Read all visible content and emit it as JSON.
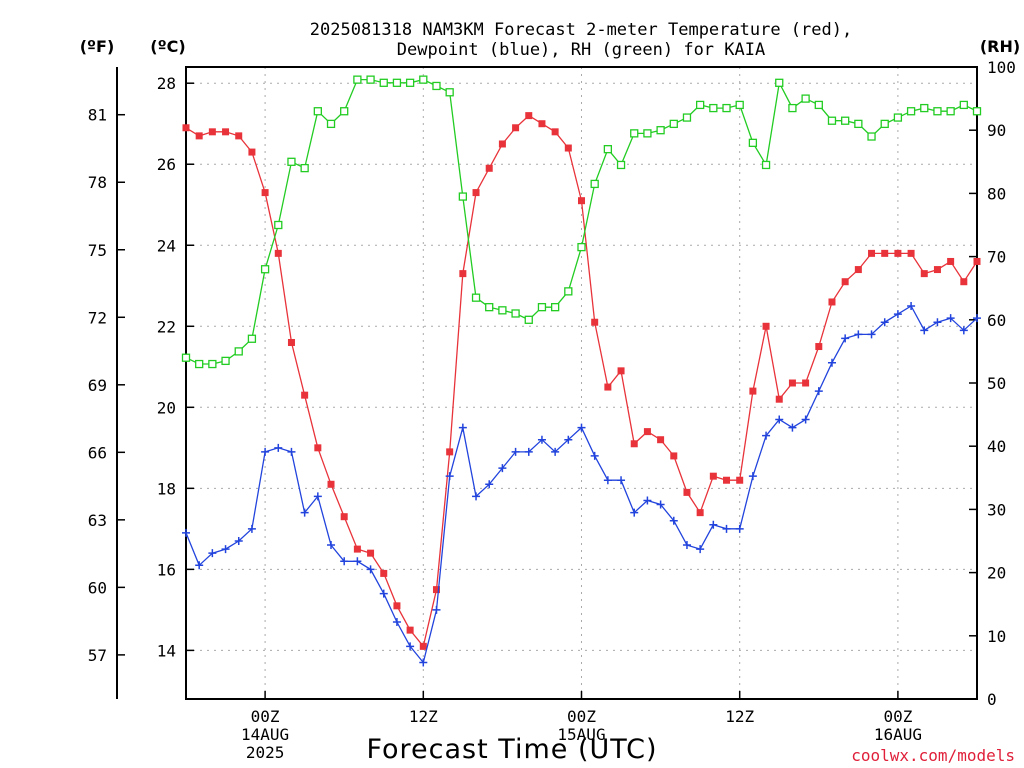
{
  "chart_data": {
    "type": "line",
    "title_line1": "2025081318 NAM3KM Forecast 2-meter Temperature (red),",
    "title_line2": "Dewpoint (blue), RH (green) for KAIA",
    "left_unit_f": "(ºF)",
    "left_unit_c": "(ºC)",
    "right_unit": "(RH)",
    "xlabel": "Forecast Time (UTC)",
    "credit": "coolwx.com/models",
    "x_ticks": [
      {
        "hour": 6,
        "lines": [
          "00Z",
          "14AUG",
          "2025"
        ]
      },
      {
        "hour": 18,
        "lines": [
          "12Z"
        ]
      },
      {
        "hour": 30,
        "lines": [
          "00Z",
          "15AUG"
        ]
      },
      {
        "hour": 42,
        "lines": [
          "12Z"
        ]
      },
      {
        "hour": 54,
        "lines": [
          "00Z",
          "16AUG"
        ]
      }
    ],
    "x_range": [
      0,
      60
    ],
    "celsius_ticks": [
      14,
      16,
      18,
      20,
      22,
      24,
      26,
      28
    ],
    "celsius_range": [
      12.8,
      28.4
    ],
    "fahrenheit_ticks": [
      57,
      60,
      63,
      66,
      69,
      72,
      75,
      78,
      81
    ],
    "rh_ticks": [
      0,
      10,
      20,
      30,
      40,
      50,
      60,
      70,
      80,
      90,
      100
    ],
    "rh_range": [
      0,
      100
    ],
    "grid": true,
    "series": [
      {
        "name": "2-meter Temperature",
        "color": "#e8333a",
        "marker": "filled-square",
        "axis": "celsius",
        "x": [
          0,
          1,
          2,
          3,
          4,
          5,
          6,
          7,
          8,
          9,
          10,
          11,
          12,
          13,
          14,
          15,
          16,
          17,
          18,
          19,
          20,
          21,
          22,
          23,
          24,
          25,
          26,
          27,
          28,
          29,
          30,
          31,
          32,
          33,
          34,
          35,
          36,
          37,
          38,
          39,
          40,
          41,
          42,
          43,
          44,
          45,
          46,
          47,
          48,
          49,
          50,
          51,
          52,
          53,
          54,
          55,
          56,
          57,
          58,
          59,
          60
        ],
        "values": [
          26.9,
          26.7,
          26.8,
          26.8,
          26.7,
          26.3,
          25.3,
          23.8,
          21.6,
          20.3,
          19.0,
          18.1,
          17.3,
          16.5,
          16.4,
          15.9,
          15.1,
          14.5,
          14.1,
          15.5,
          18.9,
          23.3,
          25.3,
          25.9,
          26.5,
          26.9,
          27.2,
          27.0,
          26.8,
          26.4,
          25.1,
          22.1,
          20.5,
          20.9,
          19.1,
          19.4,
          19.2,
          18.8,
          17.9,
          17.4,
          18.3,
          18.2,
          18.2,
          20.4,
          22.0,
          20.2,
          20.6,
          20.6,
          21.5,
          22.6,
          23.1,
          23.4,
          23.8,
          23.8,
          23.8,
          23.8,
          23.3,
          23.4,
          23.6,
          23.1,
          23.6
        ]
      },
      {
        "name": "Dewpoint",
        "color": "#2244dd",
        "marker": "plus",
        "axis": "celsius",
        "x": [
          0,
          1,
          2,
          3,
          4,
          5,
          6,
          7,
          8,
          9,
          10,
          11,
          12,
          13,
          14,
          15,
          16,
          17,
          18,
          19,
          20,
          21,
          22,
          23,
          24,
          25,
          26,
          27,
          28,
          29,
          30,
          31,
          32,
          33,
          34,
          35,
          36,
          37,
          38,
          39,
          40,
          41,
          42,
          43,
          44,
          45,
          46,
          47,
          48,
          49,
          50,
          51,
          52,
          53,
          54,
          55,
          56,
          57,
          58,
          59,
          60
        ],
        "values": [
          16.9,
          16.1,
          16.4,
          16.5,
          16.7,
          17.0,
          18.9,
          19.0,
          18.9,
          17.4,
          17.8,
          16.6,
          16.2,
          16.2,
          16.0,
          15.4,
          14.7,
          14.1,
          13.7,
          15.0,
          18.3,
          19.5,
          17.8,
          18.1,
          18.5,
          18.9,
          18.9,
          19.2,
          18.9,
          19.2,
          19.5,
          18.8,
          18.2,
          18.2,
          17.4,
          17.7,
          17.6,
          17.2,
          16.6,
          16.5,
          17.1,
          17.0,
          17.0,
          18.3,
          19.3,
          19.7,
          19.5,
          19.7,
          20.4,
          21.1,
          21.7,
          21.8,
          21.8,
          22.1,
          22.3,
          22.5,
          21.9,
          22.1,
          22.2,
          21.9,
          22.2
        ]
      },
      {
        "name": "RH",
        "color": "#22cc22",
        "marker": "open-square",
        "axis": "rh",
        "x": [
          0,
          1,
          2,
          3,
          4,
          5,
          6,
          7,
          8,
          9,
          10,
          11,
          12,
          13,
          14,
          15,
          16,
          17,
          18,
          19,
          20,
          21,
          22,
          23,
          24,
          25,
          26,
          27,
          28,
          29,
          30,
          31,
          32,
          33,
          34,
          35,
          36,
          37,
          38,
          39,
          40,
          41,
          42,
          43,
          44,
          45,
          46,
          47,
          48,
          49,
          50,
          51,
          52,
          53,
          54,
          55,
          56,
          57,
          58,
          59,
          60
        ],
        "values": [
          54,
          53,
          53,
          53.5,
          55,
          57,
          68,
          75,
          85,
          84,
          93,
          91,
          93,
          98,
          98,
          97.5,
          97.5,
          97.5,
          98,
          97,
          96,
          79.5,
          63.5,
          62,
          61.5,
          61,
          60,
          62,
          62,
          64.5,
          71.5,
          81.5,
          87,
          84.5,
          89.5,
          89.5,
          90,
          91,
          92,
          94,
          93.5,
          93.5,
          94,
          88,
          84.5,
          97.5,
          93.5,
          95,
          94,
          91.5,
          91.5,
          91,
          89,
          91,
          92,
          93,
          93.5,
          93,
          93,
          94,
          93
        ]
      }
    ]
  }
}
